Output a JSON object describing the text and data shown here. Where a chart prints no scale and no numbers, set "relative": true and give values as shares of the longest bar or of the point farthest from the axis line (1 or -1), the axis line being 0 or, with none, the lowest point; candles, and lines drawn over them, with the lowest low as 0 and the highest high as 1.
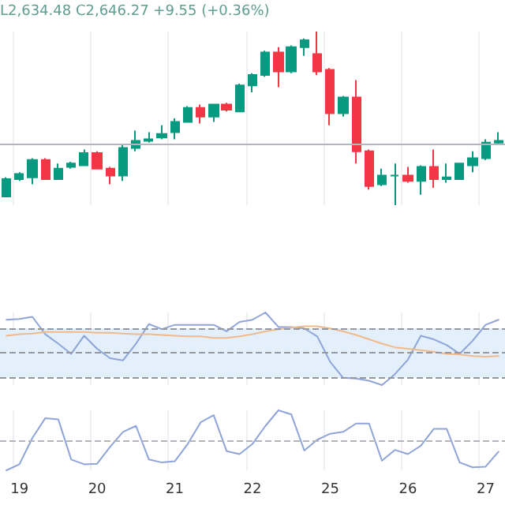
{
  "chart_data": [
    {
      "type": "candlestick",
      "relative": true,
      "tick_labels": false,
      "grid": "x",
      "annotations": [
        "L2,634.48 C2,646.27 +9.55 (+0.36%)"
      ],
      "categories": [
        null,
        "19",
        null,
        null,
        null,
        null,
        null,
        "20",
        null,
        null,
        null,
        null,
        null,
        "21",
        null,
        null,
        null,
        null,
        null,
        "22",
        null,
        null,
        null,
        null,
        null,
        "25",
        null,
        null,
        null,
        null,
        null,
        "26",
        null,
        null,
        null,
        null,
        null,
        "27",
        null
      ],
      "ohlc": [
        [
          0.05,
          0.16,
          0.05,
          0.15
        ],
        [
          0.15,
          0.19,
          0.14,
          0.18
        ],
        [
          0.16,
          0.27,
          0.12,
          0.26
        ],
        [
          0.26,
          0.27,
          0.15,
          0.15
        ],
        [
          0.15,
          0.24,
          0.15,
          0.21
        ],
        [
          0.22,
          0.25,
          0.21,
          0.24
        ],
        [
          0.23,
          0.32,
          0.23,
          0.3
        ],
        [
          0.3,
          0.31,
          0.21,
          0.21
        ],
        [
          0.21,
          0.22,
          0.12,
          0.17
        ],
        [
          0.17,
          0.35,
          0.14,
          0.33
        ],
        [
          0.33,
          0.43,
          0.31,
          0.37
        ],
        [
          0.37,
          0.42,
          0.36,
          0.38
        ],
        [
          0.39,
          0.46,
          0.38,
          0.41
        ],
        [
          0.42,
          0.5,
          0.38,
          0.48
        ],
        [
          0.48,
          0.57,
          0.48,
          0.56
        ],
        [
          0.56,
          0.58,
          0.47,
          0.51
        ],
        [
          0.51,
          0.58,
          0.48,
          0.58
        ],
        [
          0.58,
          0.59,
          0.54,
          0.55
        ],
        [
          0.54,
          0.7,
          0.54,
          0.69
        ],
        [
          0.69,
          0.76,
          0.65,
          0.75
        ],
        [
          0.75,
          0.89,
          0.74,
          0.88
        ],
        [
          0.88,
          0.91,
          0.68,
          0.77
        ],
        [
          0.77,
          0.92,
          0.76,
          0.91
        ],
        [
          0.91,
          0.96,
          0.86,
          0.95
        ],
        [
          0.87,
          1.0,
          0.75,
          0.77
        ],
        [
          0.78,
          0.79,
          0.46,
          0.53
        ],
        [
          0.53,
          0.63,
          0.51,
          0.62
        ],
        [
          0.62,
          0.72,
          0.24,
          0.31
        ],
        [
          0.31,
          0.32,
          0.09,
          0.11
        ],
        [
          0.12,
          0.21,
          0.11,
          0.17
        ],
        [
          0.17,
          0.24,
          0,
          0.17
        ],
        [
          0.17,
          0.22,
          0.13,
          0.14
        ],
        [
          0.14,
          0.23,
          0.06,
          0.22
        ],
        [
          0.22,
          0.32,
          0.1,
          0.15
        ],
        [
          0.15,
          0.24,
          0.13,
          0.16
        ],
        [
          0.15,
          0.24,
          0.15,
          0.24
        ],
        [
          0.23,
          0.31,
          0.19,
          0.27
        ],
        [
          0.27,
          0.38,
          0.26,
          0.36
        ],
        [
          0.36,
          0.42,
          0.35,
          0.37
        ]
      ],
      "colors": [
        "#089981",
        "#089981",
        "#089981",
        "#f23645",
        "#089981",
        "#089981",
        "#089981",
        "#f23645",
        "#f23645",
        "#089981",
        "#089981",
        "#089981",
        "#089981",
        "#089981",
        "#089981",
        "#f23645",
        "#089981",
        "#f23645",
        "#089981",
        "#089981",
        "#089981",
        "#f23645",
        "#089981",
        "#089981",
        "#f23645",
        "#f23645",
        "#089981",
        "#f23645",
        "#f23645",
        "#089981",
        "#089981",
        "#f23645",
        "#089981",
        "#f23645",
        "#089981",
        "#089981",
        "#089981",
        "#089981",
        "#089981"
      ],
      "ref_lines": [
        {
          "axis": "y",
          "value": 0.35,
          "color": "#b2b5be"
        }
      ]
    },
    {
      "type": "line",
      "relative": true,
      "tick_labels": false,
      "grid": "x",
      "marker": "none",
      "categories": [
        null,
        "19",
        null,
        null,
        null,
        null,
        null,
        "20",
        null,
        null,
        null,
        null,
        null,
        "21",
        null,
        null,
        null,
        null,
        null,
        "22",
        null,
        null,
        null,
        null,
        null,
        "25",
        null,
        null,
        null,
        null,
        null,
        "26",
        null,
        null,
        null,
        null,
        null,
        "27",
        null
      ],
      "series": [
        {
          "color": "#8fa4d8",
          "values": [
            0.9,
            0.91,
            0.94,
            0.7,
            0.57,
            0.43,
            0.68,
            0.5,
            0.37,
            0.34,
            0.57,
            0.84,
            0.77,
            0.83,
            0.83,
            0.83,
            0.83,
            0.74,
            0.87,
            0.9,
            1.0,
            0.8,
            0.8,
            0.78,
            0.67,
            0.32,
            0.1,
            0.09,
            0.06,
            0,
            0.15,
            0.35,
            0.68,
            0.63,
            0.55,
            0.43,
            0.61,
            0.83,
            0.9
          ]
        },
        {
          "color": "#f0b98a",
          "values": [
            0.68,
            0.7,
            0.71,
            0.73,
            0.73,
            0.73,
            0.73,
            0.72,
            0.72,
            0.71,
            0.7,
            0.7,
            0.69,
            0.68,
            0.67,
            0.67,
            0.65,
            0.65,
            0.67,
            0.7,
            0.74,
            0.77,
            0.79,
            0.81,
            0.81,
            0.78,
            0.74,
            0.69,
            0.63,
            0.57,
            0.52,
            0.5,
            0.48,
            0.46,
            0.43,
            0.42,
            0.4,
            0.39,
            0.4
          ]
        }
      ],
      "bands": [
        {
          "axis": "y",
          "from": 0.1,
          "to": 0.78,
          "color": "#e3f0fb"
        }
      ],
      "ref_lines": [
        {
          "axis": "y",
          "value": 0.78,
          "color": "#9598a1",
          "line_style": "dashed"
        },
        {
          "axis": "y",
          "value": 0.45,
          "color": "#9598a1",
          "line_style": "dashed"
        },
        {
          "axis": "y",
          "value": 0.1,
          "color": "#9598a1",
          "line_style": "dashed"
        }
      ]
    },
    {
      "type": "line",
      "relative": true,
      "tick_labels": "x",
      "grid": "x",
      "marker": "none",
      "categories": [
        null,
        "19",
        null,
        null,
        null,
        null,
        null,
        "20",
        null,
        null,
        null,
        null,
        null,
        "21",
        null,
        null,
        null,
        null,
        null,
        "22",
        null,
        null,
        null,
        null,
        null,
        "25",
        null,
        null,
        null,
        null,
        null,
        "26",
        null,
        null,
        null,
        null,
        null,
        "27",
        null
      ],
      "series": [
        {
          "color": "#8fa4d8",
          "values": [
            0,
            0.1,
            0.54,
            0.87,
            0.85,
            0.18,
            0.1,
            0.11,
            0.39,
            0.64,
            0.74,
            0.18,
            0.13,
            0.15,
            0.44,
            0.8,
            0.92,
            0.32,
            0.27,
            0.44,
            0.74,
            1.0,
            0.93,
            0.33,
            0.51,
            0.61,
            0.64,
            0.78,
            0.78,
            0.16,
            0.34,
            0.27,
            0.41,
            0.69,
            0.69,
            0.13,
            0.05,
            0.06,
            0.31
          ]
        }
      ],
      "ref_lines": [
        {
          "axis": "y",
          "value": 0.49,
          "color": "#b2b5be",
          "line_style": "dashed"
        }
      ]
    }
  ]
}
